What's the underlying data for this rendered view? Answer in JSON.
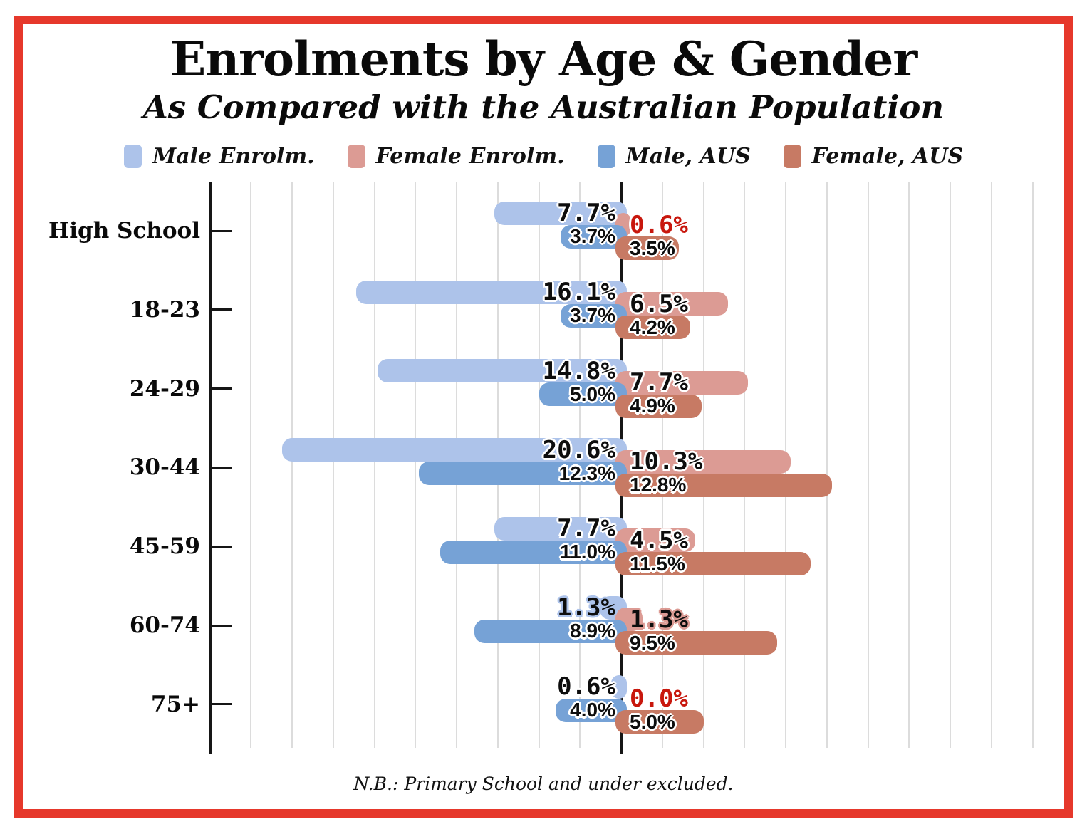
{
  "title": "Enrolments by Age & Gender",
  "subtitle": "As Compared with the Australian Population",
  "footnote": "N.B.: Primary School and under excluded.",
  "colors": {
    "border_red": "#e6382b",
    "male_enrol": "#adc3ea",
    "female_enrol": "#dc9b94",
    "male_aus": "#76a2d6",
    "female_aus": "#c77a64",
    "red_label": "#c8170d",
    "gridline": "#dcdcdc",
    "axis": "#161616",
    "text": "#0a0a0a"
  },
  "chart_data": {
    "type": "bar",
    "orientation": "horizontal-pyramid",
    "title": "Enrolments by Age & Gender",
    "subtitle": "As Compared with the Australian Population",
    "categories": [
      "High School",
      "18-23",
      "24-29",
      "30-44",
      "45-59",
      "60-74",
      "75+"
    ],
    "series": [
      {
        "name": "Male Enrolm.",
        "side": "left",
        "color": "#adc3ea",
        "label_style": "enrol",
        "values": [
          7.7,
          16.1,
          14.8,
          20.6,
          7.7,
          1.3,
          0.6
        ]
      },
      {
        "name": "Female Enrolm.",
        "side": "right",
        "color": "#dc9b94",
        "label_style": "enrol",
        "values": [
          0.6,
          6.5,
          7.7,
          10.3,
          4.5,
          1.3,
          0.0
        ]
      },
      {
        "name": "Male, AUS",
        "side": "left",
        "color": "#76a2d6",
        "label_style": "aus",
        "values": [
          3.7,
          3.7,
          5.0,
          12.3,
          11.0,
          8.9,
          4.0
        ]
      },
      {
        "name": "Female, AUS",
        "side": "right",
        "color": "#c77a64",
        "label_style": "aus",
        "values": [
          3.5,
          4.2,
          4.9,
          12.8,
          11.5,
          9.5,
          5.0
        ]
      }
    ],
    "label_format": "one-decimal-percent",
    "label_overrides": [
      {
        "series": 1,
        "row": 0,
        "color": "#c8170d"
      },
      {
        "series": 1,
        "row": 6,
        "color": "#c8170d"
      },
      {
        "series": 0,
        "row": 5,
        "halo": "#adc3ea"
      },
      {
        "series": 1,
        "row": 5,
        "halo": "#dc9b94"
      }
    ],
    "xlim": [
      -25,
      26.7
    ],
    "gridline_step_pct": 2.5,
    "x_tick_labels": "none",
    "grid": "vertical-only",
    "legend_position": "top",
    "note": "N.B.: Primary School and under excluded."
  }
}
